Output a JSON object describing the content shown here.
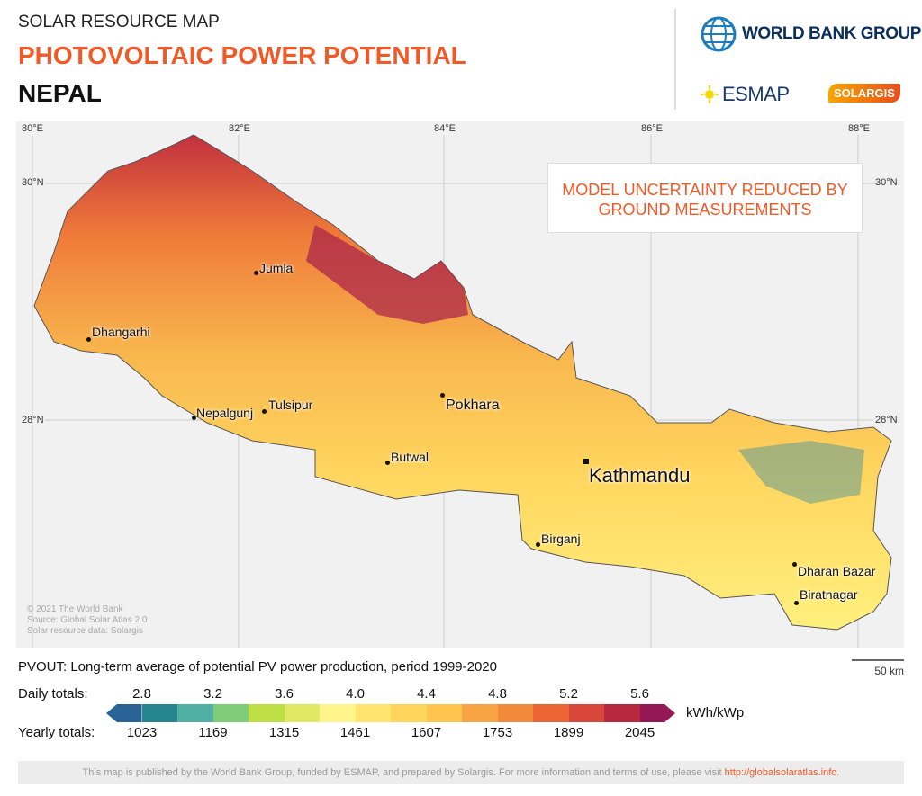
{
  "header": {
    "supertitle": "SOLAR RESOURCE MAP",
    "title": "PHOTOVOLTAIC POWER POTENTIAL",
    "country": "NEPAL"
  },
  "logos": {
    "world_bank": "WORLD BANK GROUP",
    "esmap": "ESMAP",
    "solargis": "SOLARGIS"
  },
  "map": {
    "longitudes": [
      "80°E",
      "82°E",
      "84°E",
      "86°E",
      "88°E"
    ],
    "latitudes": {
      "north": "30°N",
      "south": "28°N"
    },
    "notice": "MODEL UNCERTAINTY REDUCED BY GROUND MEASUREMENTS",
    "cities": [
      "Jumla",
      "Dhangarhi",
      "Nepalgunj",
      "Tulsipur",
      "Pokhara",
      "Butwal",
      "Kathmandu",
      "Birganj",
      "Dharan Bazar",
      "Biratnagar"
    ],
    "credits": [
      "© 2021 The World Bank",
      "Source: Global Solar Atlas 2.0",
      "Solar resource data: Solargis"
    ]
  },
  "legend": {
    "description": "PVOUT: Long-term average of potential PV power production, period 1999-2020",
    "scale": "50 km",
    "daily_label": "Daily totals:",
    "yearly_label": "Yearly totals:",
    "daily": [
      "2.8",
      "3.2",
      "3.6",
      "4.0",
      "4.4",
      "4.8",
      "5.2",
      "5.6"
    ],
    "yearly": [
      "1023",
      "1169",
      "1315",
      "1461",
      "1607",
      "1753",
      "1899",
      "2045"
    ],
    "unit": "kWh/kWp",
    "colors": [
      "#2a6496",
      "#27858f",
      "#4fb0a3",
      "#80cb78",
      "#bddf45",
      "#dfe964",
      "#fff58a",
      "#ffe470",
      "#ffd55c",
      "#ffc44d",
      "#f8a445",
      "#f28a3c",
      "#ea6434",
      "#d9463a",
      "#b8283f",
      "#951856"
    ]
  },
  "footer": {
    "text": "This map is published by the World Bank Group, funded by ESMAP, and prepared by Solargis. For more information and terms of use, please visit ",
    "link": "http://globalsolaratlas.info",
    "end": "."
  }
}
